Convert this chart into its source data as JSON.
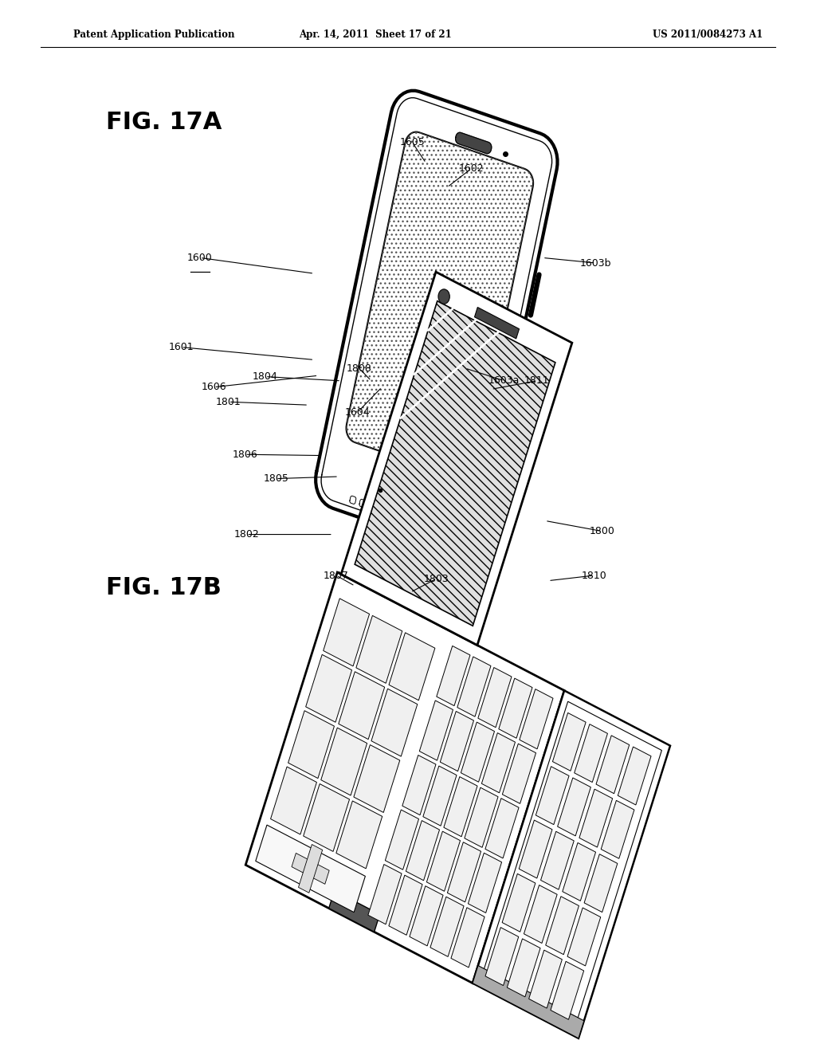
{
  "background_color": "#ffffff",
  "header_left": "Patent Application Publication",
  "header_center": "Apr. 14, 2011  Sheet 17 of 21",
  "header_right": "US 2011/0084273 A1",
  "fig17a_label": "FIG. 17A",
  "fig17b_label": "FIG. 17B"
}
